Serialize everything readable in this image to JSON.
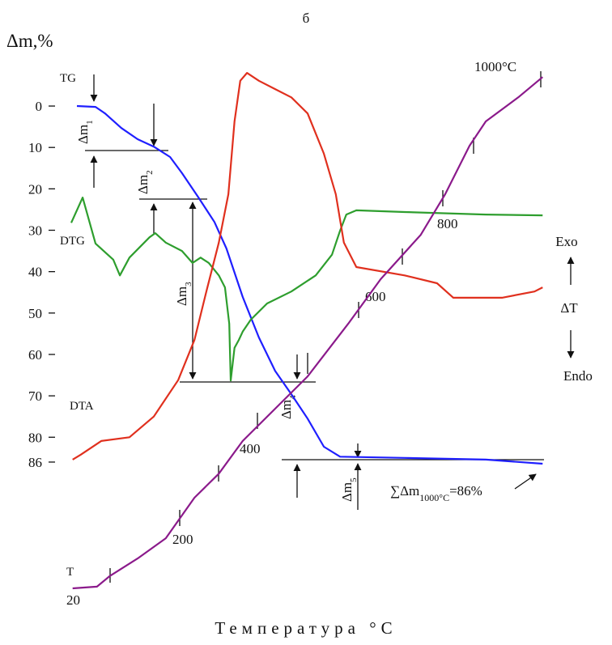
{
  "chart_data": {
    "type": "line",
    "title": "б",
    "y_label": "Δm,%",
    "x_label": "Температура °C",
    "xlim": [
      0,
      100
    ],
    "ylim": [
      -9,
      121
    ],
    "yticks": [
      0,
      10,
      20,
      30,
      40,
      50,
      60,
      70,
      80,
      86
    ],
    "series": [
      {
        "name": "TG",
        "color": "#1f1fff",
        "x": [
          1.7,
          5.6,
          7.6,
          11,
          14.4,
          17.8,
          21.2,
          23.7,
          27.1,
          30.5,
          33,
          36.4,
          39.8,
          43.2,
          46.6,
          50,
          53.4,
          56.8,
          70.3,
          87.3,
          99.2
        ],
        "values": [
          0,
          0.2,
          1.8,
          5.3,
          8,
          9.8,
          12.3,
          16.2,
          22,
          28,
          34.4,
          46.1,
          55.9,
          64,
          69.6,
          75.5,
          82.3,
          84.7,
          85,
          85.4,
          86.4
        ]
      },
      {
        "name": "DTG",
        "color": "#2e9e2e",
        "x": [
          0.5,
          2.9,
          5.6,
          9.3,
          10.7,
          12.7,
          16.9,
          18.1,
          20.3,
          23.7,
          25.9,
          27.6,
          29.3,
          31.4,
          32.7,
          33.6,
          33.9,
          34.7,
          35.6,
          36.4,
          38.1,
          41.5,
          46.6,
          51.7,
          55.1,
          56.8,
          58.1,
          60.2,
          70.3,
          87.3,
          99.2
        ],
        "values": [
          28.2,
          22.1,
          33.2,
          37.1,
          40.9,
          36.6,
          31.7,
          30.7,
          33,
          35,
          37.9,
          36.6,
          37.9,
          40.9,
          43.8,
          52.6,
          66.3,
          58.4,
          56.5,
          54.5,
          51.6,
          47.7,
          44.8,
          40.9,
          35.9,
          30.1,
          26.2,
          25.2,
          25.6,
          26.2,
          26.4
        ]
      },
      {
        "name": "DTA",
        "color": "#e0301e",
        "x": [
          0.8,
          2.5,
          6.8,
          12.7,
          17.8,
          22.9,
          26.3,
          28.8,
          31.4,
          33.4,
          34.7,
          35.9,
          37.3,
          39.8,
          43.2,
          46.6,
          50,
          53.4,
          55.9,
          57.6,
          60.2,
          70.3,
          77.1,
          80.5,
          90.7,
          97.5,
          99.2
        ],
        "values": [
          85.4,
          84.2,
          80.9,
          80,
          75,
          66.2,
          56.5,
          44.8,
          33,
          21.3,
          3.7,
          -6.1,
          -8,
          -6.1,
          -4.1,
          -2.1,
          1.8,
          11.5,
          21.3,
          33,
          38.9,
          40.9,
          42.8,
          46.3,
          46.3,
          44.8,
          43.8
        ]
      },
      {
        "name": "T",
        "color": "#8b1a8b",
        "x": [
          0.8,
          5.9,
          8.5,
          14.4,
          20.3,
          26.3,
          31.4,
          36.4,
          43.2,
          50,
          58.5,
          65.3,
          73.7,
          78.8,
          83.9,
          87.3,
          94.1,
          99.2
        ],
        "values": [
          116.5,
          116.1,
          113.6,
          109.3,
          104.4,
          94.6,
          88.8,
          80.9,
          73.1,
          65.3,
          52.6,
          41.8,
          31.1,
          21.3,
          9.6,
          3.7,
          -2.1,
          -7
        ]
      }
    ],
    "temperature_labels": [
      "20",
      "200",
      "400",
      "600",
      "800",
      "1000°C"
    ],
    "mass_steps": [
      {
        "text": "Δm",
        "sub": "1"
      },
      {
        "text": "Δm",
        "sub": "2"
      },
      {
        "text": "Δm",
        "sub": "3"
      },
      {
        "text": "Δm",
        "sub": "4"
      },
      {
        "text": "Δm",
        "sub": "5"
      }
    ],
    "total_loss": {
      "text": "∑Δm",
      "sub": "1000°C",
      "tail": "=86%"
    },
    "dta_axis": {
      "exo": "Exo",
      "label": "ΔT",
      "endo": "Endo"
    }
  }
}
